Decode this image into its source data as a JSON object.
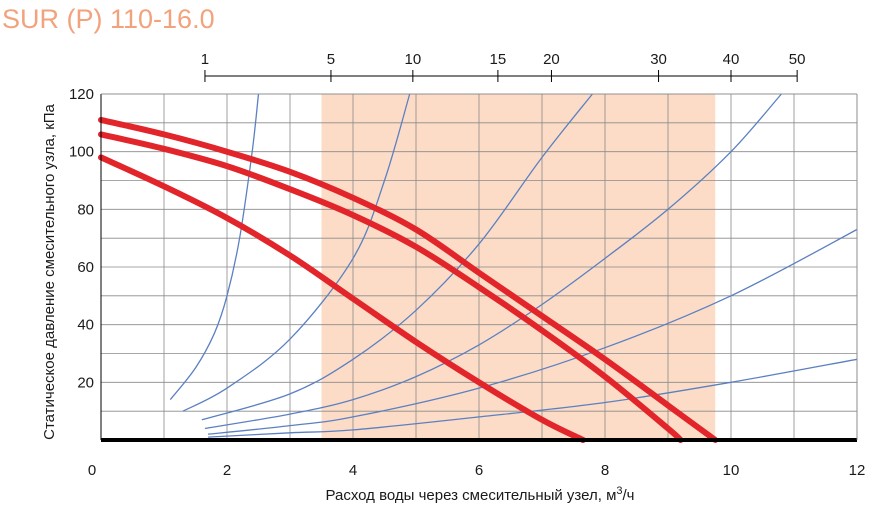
{
  "title": "SUR (P) 110-16.0",
  "colors": {
    "title": "#f2a27c",
    "band": "#fcdcc6",
    "grid": "#8a8a8a",
    "pump_curve": "#e1252a",
    "system_curve": "#5b80c2",
    "axis": "#000000"
  },
  "chart_data": {
    "type": "line",
    "xlabel": "Расход воды через смесительный узел, м",
    "xlabel_sup": "3",
    "xlabel_tail": "/ч",
    "ylabel": "Статическое давление смесительного узла, кПа",
    "xlim": [
      0,
      12
    ],
    "ylim": [
      0,
      120
    ],
    "x_ticks": [
      "0",
      "2",
      "4",
      "6",
      "8",
      "10",
      "12"
    ],
    "x_tick_values": [
      0,
      2,
      4,
      6,
      8,
      10,
      12
    ],
    "y_ticks": [
      "20",
      "40",
      "60",
      "80",
      "100",
      "120"
    ],
    "y_tick_values": [
      20,
      40,
      60,
      80,
      100,
      120
    ],
    "grid": true,
    "grid_x_step": 1,
    "grid_y_step": 10,
    "recommended_band": [
      3.5,
      9.75
    ],
    "top_scale": {
      "labels": [
        "1",
        "5",
        "10",
        "15",
        "20",
        "30",
        "40",
        "50"
      ],
      "positions": [
        1.65,
        3.65,
        4.95,
        6.3,
        7.15,
        8.85,
        10.0,
        11.05
      ]
    },
    "pump_curves": [
      {
        "x": [
          0,
          1,
          2,
          3,
          4,
          5,
          6,
          7,
          8,
          9,
          9.75
        ],
        "y": [
          111,
          106,
          100,
          93,
          84,
          73,
          58,
          43,
          28,
          12,
          0
        ]
      },
      {
        "x": [
          0,
          1,
          2,
          3,
          4,
          5,
          6,
          7,
          8,
          9,
          9.2
        ],
        "y": [
          106,
          101,
          95,
          87,
          78,
          67,
          53,
          38,
          22,
          4,
          0
        ]
      },
      {
        "x": [
          0,
          1,
          2,
          3,
          4,
          5,
          6,
          7,
          7.65
        ],
        "y": [
          98,
          88,
          77,
          64,
          49,
          34,
          20,
          7,
          0
        ]
      }
    ],
    "system_curves": [
      {
        "x": [
          1.1,
          1.5,
          1.8,
          2.0,
          2.2,
          2.4,
          2.5
        ],
        "y": [
          14,
          25,
          37,
          50,
          70,
          100,
          120
        ]
      },
      {
        "x": [
          1.3,
          2,
          3,
          4,
          4.5,
          4.9
        ],
        "y": [
          10,
          18,
          35,
          63,
          90,
          120
        ]
      },
      {
        "x": [
          1.6,
          3,
          4,
          5,
          6,
          7,
          7.8
        ],
        "y": [
          7,
          16,
          28,
          45,
          68,
          98,
          120
        ]
      },
      {
        "x": [
          1.65,
          3,
          4,
          5,
          6,
          7,
          8,
          9,
          10,
          10.8
        ],
        "y": [
          4,
          9,
          14,
          22,
          33,
          47,
          63,
          80,
          100,
          120
        ]
      },
      {
        "x": [
          1.7,
          3,
          4,
          6,
          8,
          10,
          12
        ],
        "y": [
          2,
          5,
          8,
          18,
          32,
          50,
          73
        ]
      },
      {
        "x": [
          1.7,
          3,
          4,
          6,
          8,
          10,
          12
        ],
        "y": [
          1,
          2.5,
          3.5,
          8,
          13,
          20,
          28
        ]
      }
    ]
  }
}
